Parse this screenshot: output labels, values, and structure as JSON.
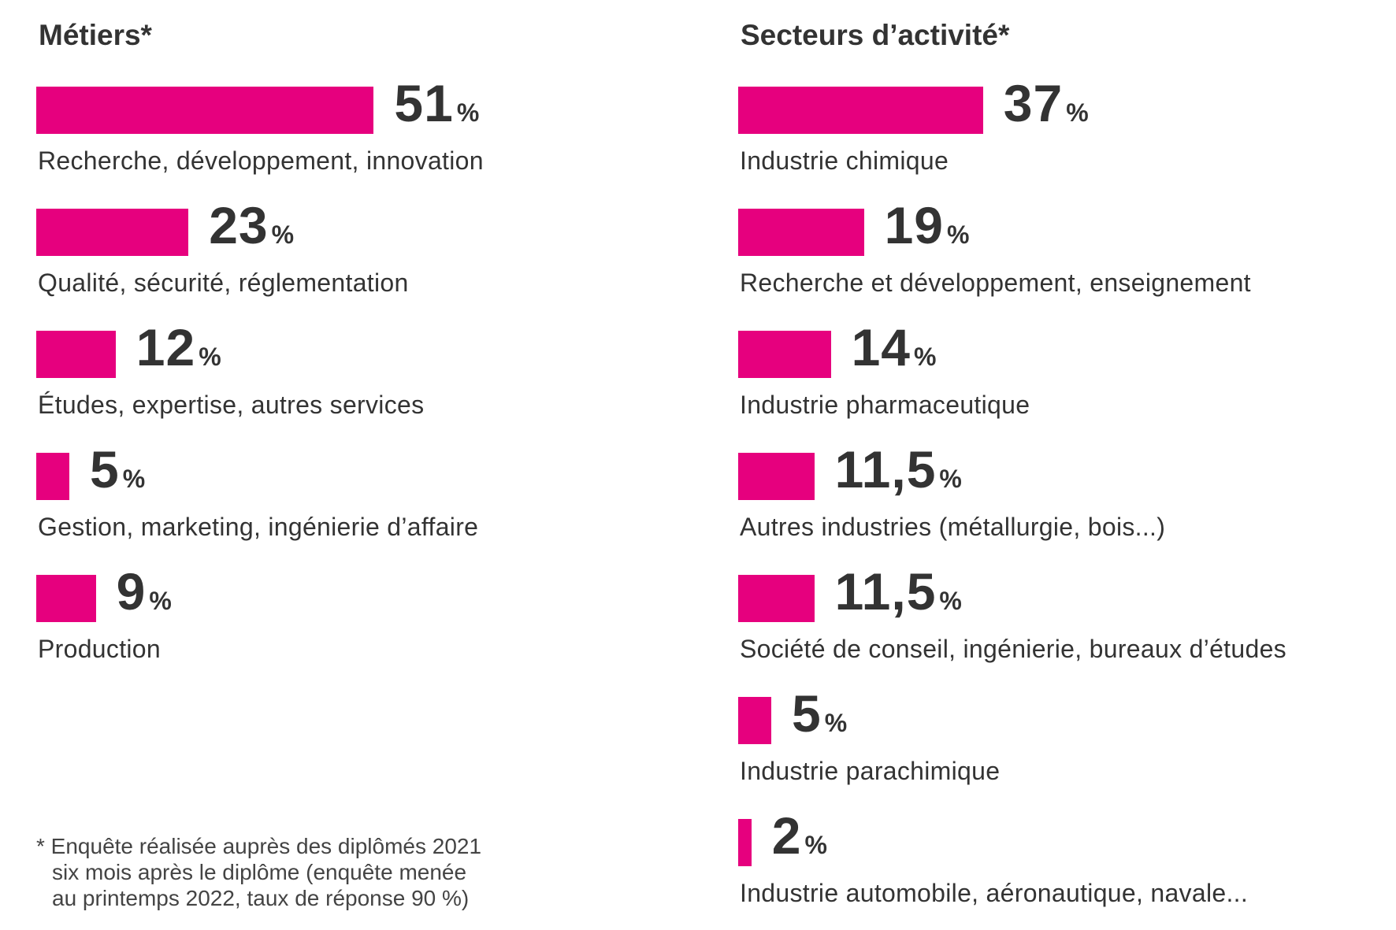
{
  "colors": {
    "bar": "#e6007e",
    "text": "#333333"
  },
  "chart_data": [
    {
      "type": "bar",
      "orientation": "horizontal",
      "title": "Métiers*",
      "categories": [
        "Recherche, développement, innovation",
        "Qualité, sécurité, réglementation",
        "Études, expertise, autres services",
        "Gestion, marketing, ingénierie d’affaire",
        "Production"
      ],
      "values": [
        51,
        23,
        12,
        5,
        9
      ],
      "value_labels": [
        "51",
        "23",
        "12",
        "5",
        "9"
      ],
      "unit": "%"
    },
    {
      "type": "bar",
      "orientation": "horizontal",
      "title": "Secteurs d’activité*",
      "categories": [
        "Industrie chimique",
        "Recherche et développement, enseignement",
        "Industrie pharmaceutique",
        "Autres industries (métallurgie, bois...)",
        "Société de conseil, ingénierie, bureaux d’études",
        "Industrie parachimique",
        "Industrie automobile, aéronautique, navale..."
      ],
      "values": [
        37,
        19,
        14,
        11.5,
        11.5,
        5,
        2
      ],
      "value_labels": [
        "37",
        "19",
        "14",
        "11,5",
        "11,5",
        "5",
        "2"
      ],
      "unit": "%"
    }
  ],
  "footnote": {
    "line1": "* Enquête réalisée auprès des diplômés 2021",
    "line2": "six mois après le diplôme (enquête menée",
    "line3": "au printemps 2022, taux de réponse 90 %)"
  }
}
